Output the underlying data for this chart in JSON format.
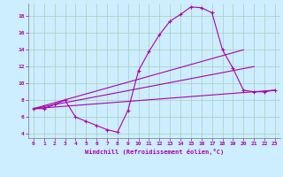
{
  "xlabel": "Windchill (Refroidissement éolien,°C)",
  "bg_color": "#cceeff",
  "grid_color": "#aaccbb",
  "line_color": "#aa00aa",
  "xlim": [
    -0.5,
    23.5
  ],
  "ylim": [
    3.5,
    19.5
  ],
  "xticks": [
    0,
    1,
    2,
    3,
    4,
    5,
    6,
    7,
    8,
    9,
    10,
    11,
    12,
    13,
    14,
    15,
    16,
    17,
    18,
    19,
    20,
    21,
    22,
    23
  ],
  "yticks": [
    4,
    6,
    8,
    10,
    12,
    14,
    16,
    18
  ],
  "line1_x": [
    0,
    1,
    2,
    3,
    4,
    5,
    6,
    7,
    8,
    9,
    10,
    11,
    12,
    13,
    14,
    15,
    16,
    17,
    18,
    19,
    20,
    21,
    22,
    23
  ],
  "line1_y": [
    7.0,
    7.0,
    7.5,
    8.0,
    6.0,
    5.5,
    5.0,
    4.5,
    4.2,
    6.8,
    11.5,
    13.8,
    15.8,
    17.4,
    18.2,
    19.1,
    19.0,
    18.4,
    14.0,
    11.8,
    9.2,
    9.0,
    9.0,
    9.2
  ],
  "line2_x": [
    0,
    23
  ],
  "line2_y": [
    7.0,
    9.2
  ],
  "line3_x": [
    0,
    20
  ],
  "line3_y": [
    7.0,
    14.0
  ],
  "line4_x": [
    0,
    21
  ],
  "line4_y": [
    7.0,
    12.0
  ]
}
